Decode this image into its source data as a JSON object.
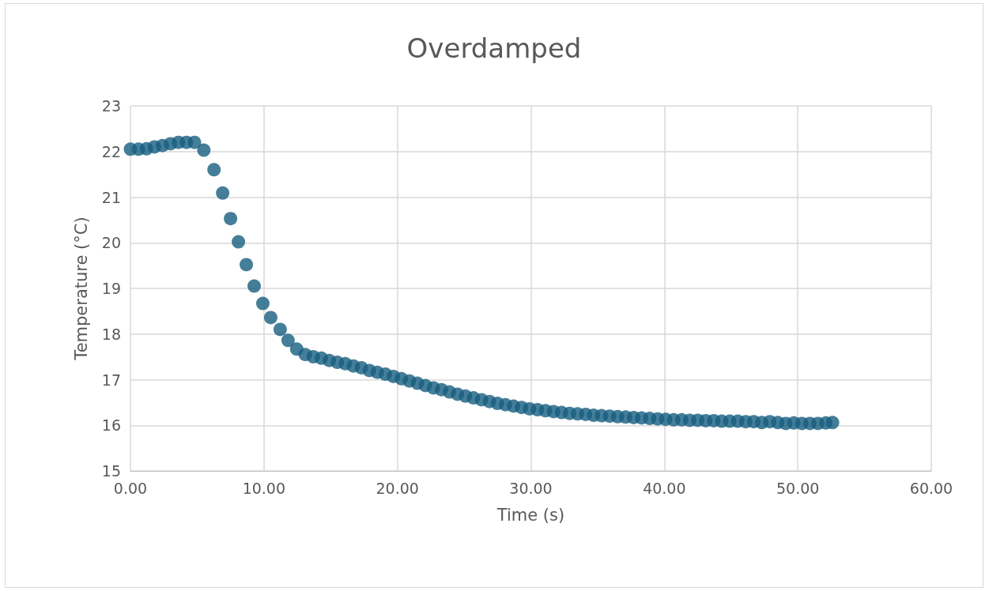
{
  "chart_data": {
    "type": "scatter",
    "title": "Overdamped",
    "xlabel": "Time (s)",
    "ylabel": "Temperature (°C)",
    "xlim": [
      0,
      60
    ],
    "xticks": [
      {
        "value": 0,
        "label": "0.00"
      },
      {
        "value": 10,
        "label": "10.00"
      },
      {
        "value": 20,
        "label": "20.00"
      },
      {
        "value": 30,
        "label": "30.00"
      },
      {
        "value": 40,
        "label": "40.00"
      },
      {
        "value": 50,
        "label": "50.00"
      },
      {
        "value": 60,
        "label": "60.00"
      }
    ],
    "ylim": [
      15,
      23
    ],
    "yticks": [
      15,
      16,
      17,
      18,
      19,
      20,
      21,
      22,
      23
    ],
    "grid": true,
    "marker": "circle",
    "x": [
      0,
      0.6,
      1.2,
      1.8,
      2.4,
      3.0,
      3.6,
      4.2,
      4.8,
      5.5,
      6.26,
      6.91,
      7.5,
      8.09,
      8.68,
      9.27,
      9.92,
      10.51,
      11.22,
      11.81,
      12.46,
      13.1,
      13.7,
      14.3,
      14.9,
      15.5,
      16.1,
      16.7,
      17.3,
      17.9,
      18.5,
      19.1,
      19.7,
      20.3,
      20.9,
      21.5,
      22.1,
      22.7,
      23.3,
      23.9,
      24.5,
      25.1,
      25.7,
      26.3,
      26.9,
      27.5,
      28.1,
      28.7,
      29.3,
      29.9,
      30.5,
      31.1,
      31.7,
      32.3,
      32.9,
      33.5,
      34.1,
      34.7,
      35.3,
      35.9,
      36.5,
      37.1,
      37.7,
      38.3,
      38.9,
      39.5,
      40.1,
      40.7,
      41.3,
      41.9,
      42.5,
      43.1,
      43.7,
      44.3,
      44.9,
      45.5,
      46.1,
      46.7,
      47.3,
      47.9,
      48.5,
      49.1,
      49.7,
      50.3,
      50.9,
      51.5,
      52.1,
      52.6
    ],
    "series": [
      {
        "color": "#175e7f",
        "values": [
          22.05,
          22.05,
          22.06,
          22.1,
          22.13,
          22.17,
          22.2,
          22.2,
          22.2,
          22.03,
          21.6,
          21.09,
          20.53,
          20.02,
          19.52,
          19.05,
          18.67,
          18.36,
          18.1,
          17.86,
          17.67,
          17.55,
          17.5,
          17.47,
          17.42,
          17.38,
          17.35,
          17.3,
          17.26,
          17.2,
          17.16,
          17.12,
          17.07,
          17.02,
          16.97,
          16.92,
          16.87,
          16.82,
          16.78,
          16.73,
          16.68,
          16.64,
          16.6,
          16.56,
          16.52,
          16.48,
          16.45,
          16.42,
          16.39,
          16.36,
          16.34,
          16.32,
          16.3,
          16.28,
          16.26,
          16.25,
          16.24,
          16.22,
          16.21,
          16.2,
          16.19,
          16.18,
          16.17,
          16.16,
          16.15,
          16.14,
          16.13,
          16.12,
          16.12,
          16.11,
          16.11,
          16.1,
          16.1,
          16.09,
          16.09,
          16.09,
          16.08,
          16.08,
          16.06,
          16.08,
          16.06,
          16.04,
          16.05,
          16.04,
          16.04,
          16.04,
          16.05,
          16.06
        ]
      }
    ]
  }
}
